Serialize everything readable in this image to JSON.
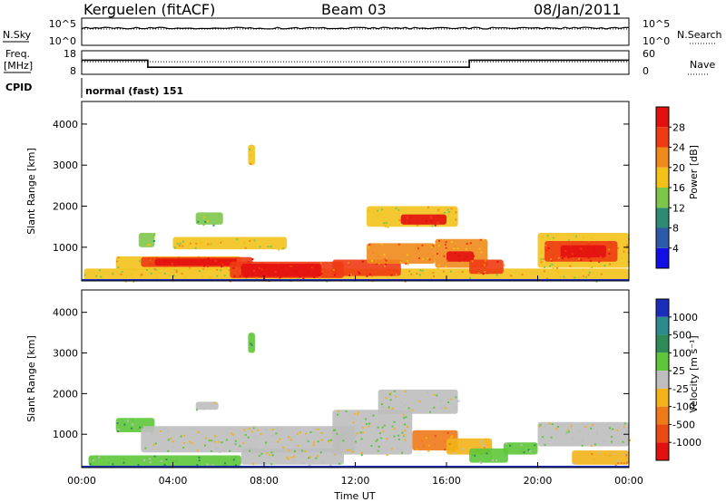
{
  "header": {
    "radar": "Kerguelen (fitACF)",
    "beam": "Beam 03",
    "date": "08/Jan/2011"
  },
  "noise_panel": {
    "left_label": "N.Sky",
    "right_label": "N.Search",
    "left_ticks": [
      "10^5",
      "10^0"
    ],
    "right_ticks": [
      "10^5",
      "10^0"
    ]
  },
  "freq_panel": {
    "label_line1": "Freq.",
    "label_line2": "[MHz]",
    "left_ticks": [
      "18",
      "8"
    ],
    "right_label": "Nave",
    "right_ticks": [
      "60",
      "0"
    ]
  },
  "cpid_panel": {
    "label": "CPID",
    "value": "normal (fast) 151"
  },
  "x_axis": {
    "label": "Time UT",
    "tick_labels": [
      "00:00",
      "04:00",
      "08:00",
      "12:00",
      "16:00",
      "20:00",
      "00:00"
    ]
  },
  "chart_data": [
    {
      "type": "heatmap",
      "name": "power",
      "ylabel": "Slant Range [km]",
      "ylim": [
        180,
        4550
      ],
      "yticks": [
        1000,
        2000,
        3000,
        4000
      ],
      "xlim_hours": [
        0,
        24
      ],
      "colorbar": {
        "label": "Power [dB]",
        "tick_labels": [
          "4",
          "8",
          "12",
          "16",
          "20",
          "24",
          "28"
        ],
        "colors": [
          "#1010e6",
          "#2d5aa8",
          "#2e8b72",
          "#7ec64a",
          "#f2c21b",
          "#f08a1a",
          "#ee3b14",
          "#e31010"
        ]
      },
      "regions": [
        {
          "t0": 0.1,
          "t1": 24.0,
          "r0": 180,
          "r1": 480,
          "level": 4
        },
        {
          "t0": 1.5,
          "t1": 7.0,
          "r0": 450,
          "r1": 780,
          "level": 4
        },
        {
          "t0": 2.6,
          "t1": 7.5,
          "r0": 520,
          "r1": 760,
          "level": 6
        },
        {
          "t0": 3.2,
          "t1": 6.8,
          "r0": 550,
          "r1": 720,
          "level": 7
        },
        {
          "t0": 6.5,
          "t1": 11.5,
          "r0": 250,
          "r1": 650,
          "level": 6
        },
        {
          "t0": 7.0,
          "t1": 10.5,
          "r0": 280,
          "r1": 600,
          "level": 7
        },
        {
          "t0": 11.0,
          "t1": 14.0,
          "r0": 300,
          "r1": 700,
          "level": 6
        },
        {
          "t0": 12.5,
          "t1": 15.5,
          "r0": 600,
          "r1": 1100,
          "level": 5
        },
        {
          "t0": 12.5,
          "t1": 16.5,
          "r0": 1500,
          "r1": 2000,
          "level": 4
        },
        {
          "t0": 14.0,
          "t1": 16.0,
          "r0": 1550,
          "r1": 1800,
          "level": 7
        },
        {
          "t0": 15.5,
          "t1": 17.8,
          "r0": 500,
          "r1": 1200,
          "level": 5
        },
        {
          "t0": 16.0,
          "t1": 17.2,
          "r0": 650,
          "r1": 900,
          "level": 7
        },
        {
          "t0": 17.0,
          "t1": 18.5,
          "r0": 350,
          "r1": 700,
          "level": 6
        },
        {
          "t0": 20.0,
          "t1": 24.0,
          "r0": 500,
          "r1": 1350,
          "level": 4
        },
        {
          "t0": 20.3,
          "t1": 23.5,
          "r0": 650,
          "r1": 1150,
          "level": 6
        },
        {
          "t0": 21.0,
          "t1": 23.0,
          "r0": 750,
          "r1": 1050,
          "level": 7
        },
        {
          "t0": 2.5,
          "t1": 3.2,
          "r0": 1000,
          "r1": 1350,
          "level": 3
        },
        {
          "t0": 5.0,
          "t1": 6.2,
          "r0": 1550,
          "r1": 1850,
          "level": 3
        },
        {
          "t0": 7.3,
          "t1": 7.6,
          "r0": 3000,
          "r1": 3500,
          "level": 4
        },
        {
          "t0": 4.0,
          "t1": 9.0,
          "r0": 950,
          "r1": 1250,
          "level": 4
        }
      ]
    },
    {
      "type": "heatmap",
      "name": "velocity",
      "ylabel": "Slant Range [km]",
      "ylim": [
        180,
        4550
      ],
      "yticks": [
        1000,
        2000,
        3000,
        4000
      ],
      "xlim_hours": [
        0,
        24
      ],
      "colorbar": {
        "label": "Velocity [m s⁻¹]",
        "tick_labels": [
          "1000",
          "500",
          "100",
          "25",
          "-25",
          "-100",
          "-500",
          "-1000"
        ],
        "colors": [
          "#1a2dbb",
          "#2e8b8b",
          "#2e8b57",
          "#5ec63a",
          "#bebebe",
          "#f2b218",
          "#ee7a1a",
          "#e84a12",
          "#e31010"
        ]
      },
      "regions": [
        {
          "t0": 0.3,
          "t1": 7.0,
          "r0": 220,
          "r1": 480,
          "level": 3
        },
        {
          "t0": 1.5,
          "t1": 3.2,
          "r0": 1050,
          "r1": 1400,
          "level": 3
        },
        {
          "t0": 2.6,
          "t1": 12.0,
          "r0": 550,
          "r1": 1200,
          "level": 4
        },
        {
          "t0": 7.0,
          "t1": 11.5,
          "r0": 250,
          "r1": 650,
          "level": 4
        },
        {
          "t0": 11.0,
          "t1": 14.5,
          "r0": 500,
          "r1": 1600,
          "level": 4
        },
        {
          "t0": 13.0,
          "t1": 16.5,
          "r0": 1500,
          "r1": 2100,
          "level": 4
        },
        {
          "t0": 14.5,
          "t1": 16.5,
          "r0": 600,
          "r1": 1100,
          "level": 6
        },
        {
          "t0": 16.0,
          "t1": 18.0,
          "r0": 500,
          "r1": 900,
          "level": 5
        },
        {
          "t0": 17.0,
          "t1": 18.7,
          "r0": 300,
          "r1": 650,
          "level": 3
        },
        {
          "t0": 18.5,
          "t1": 20.0,
          "r0": 500,
          "r1": 800,
          "level": 3
        },
        {
          "t0": 20.0,
          "t1": 24.0,
          "r0": 700,
          "r1": 1300,
          "level": 4
        },
        {
          "t0": 21.5,
          "t1": 24.0,
          "r0": 250,
          "r1": 600,
          "level": 5
        },
        {
          "t0": 7.3,
          "t1": 7.6,
          "r0": 3000,
          "r1": 3500,
          "level": 3
        },
        {
          "t0": 5.0,
          "t1": 6.0,
          "r0": 1600,
          "r1": 1800,
          "level": 4
        }
      ]
    }
  ],
  "noise_data": {
    "sky_level_log": 4.0,
    "search_level_log": 4.0
  },
  "freq_data": {
    "segments": [
      {
        "t0": 0.0,
        "t1": 2.9,
        "freq_mhz": 14.0
      },
      {
        "t0": 2.9,
        "t1": 17.0,
        "freq_mhz": 11.0
      },
      {
        "t0": 17.0,
        "t1": 24.0,
        "freq_mhz": 14.0
      }
    ],
    "nave": 32
  }
}
